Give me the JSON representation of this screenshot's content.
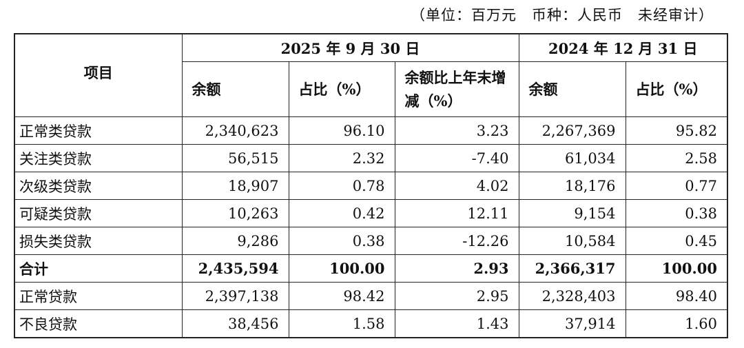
{
  "note": "（单位：百万元　币种：人民币　未经审计）",
  "table": {
    "corner": "项目",
    "groups": [
      "2025 年 9 月 30 日",
      "2024 年 12 月 31 日"
    ],
    "columns": [
      "余额",
      "占比（%）",
      "余额比上年末增减（%）",
      "余额",
      "占比（%）"
    ],
    "rows": [
      [
        "正常类贷款",
        "2,340,623",
        "96.10",
        "3.23",
        "2,267,369",
        "95.82"
      ],
      [
        "关注类贷款",
        "56,515",
        "2.32",
        "-7.40",
        "61,034",
        "2.58"
      ],
      [
        "次级类贷款",
        "18,907",
        "0.78",
        "4.02",
        "18,176",
        "0.77"
      ],
      [
        "可疑类贷款",
        "10,263",
        "0.42",
        "12.11",
        "9,154",
        "0.38"
      ],
      [
        "损失类贷款",
        "9,286",
        "0.38",
        "-12.26",
        "10,584",
        "0.45"
      ],
      [
        "合计",
        "2,435,594",
        "100.00",
        "2.93",
        "2,366,317",
        "100.00"
      ],
      [
        "正常贷款",
        "2,397,138",
        "98.42",
        "2.95",
        "2,328,403",
        "98.40"
      ],
      [
        "不良贷款",
        "38,456",
        "1.58",
        "1.43",
        "37,914",
        "1.60"
      ]
    ]
  }
}
